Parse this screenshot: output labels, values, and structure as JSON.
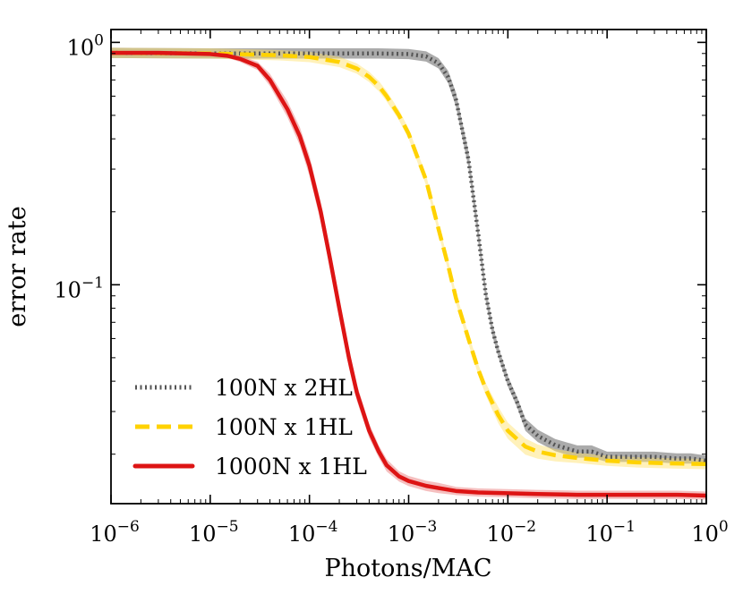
{
  "chart_data": {
    "type": "line",
    "xscale": "log",
    "yscale": "log",
    "xlabel": "Photons/MAC",
    "ylabel": "error rate",
    "xlim": [
      1e-06,
      1
    ],
    "ylim": [
      0.0125,
      1.13
    ],
    "x_ticks": [
      {
        "base": "10",
        "exp": "−6",
        "value": 1e-06
      },
      {
        "base": "10",
        "exp": "−5",
        "value": 1e-05
      },
      {
        "base": "10",
        "exp": "−4",
        "value": 0.0001
      },
      {
        "base": "10",
        "exp": "−3",
        "value": 0.001
      },
      {
        "base": "10",
        "exp": "−2",
        "value": 0.01
      },
      {
        "base": "10",
        "exp": "−1",
        "value": 0.1
      },
      {
        "base": "10",
        "exp": "0",
        "value": 1
      }
    ],
    "y_ticks": [
      {
        "base": "10",
        "exp": "0",
        "value": 1
      },
      {
        "base": "10",
        "exp": "−1",
        "value": 0.1
      }
    ],
    "legend_position": "lower-left",
    "series": [
      {
        "name": "100N x 2HL",
        "color": "#555555",
        "band_color": "#444444",
        "style": "dotted",
        "x": [
          1e-06,
          1e-05,
          0.0001,
          0.0005,
          0.001,
          0.0015,
          0.002,
          0.0025,
          0.003,
          0.004,
          0.005,
          0.006,
          0.007,
          0.008,
          0.01,
          0.0125,
          0.015,
          0.02,
          0.03,
          0.05,
          0.07,
          0.1,
          0.15,
          0.2,
          0.3,
          0.5,
          0.7,
          1
        ],
        "y": [
          0.905,
          0.9,
          0.9,
          0.9,
          0.895,
          0.875,
          0.82,
          0.72,
          0.58,
          0.33,
          0.165,
          0.091,
          0.065,
          0.053,
          0.04,
          0.0325,
          0.0265,
          0.0238,
          0.0218,
          0.0205,
          0.0205,
          0.0195,
          0.0195,
          0.0195,
          0.0195,
          0.0192,
          0.0192,
          0.0188
        ],
        "band": [
          0.05,
          0.05,
          0.05,
          0.05,
          0.05,
          0.05,
          0.05,
          0.06,
          0.07,
          0.08,
          0.08,
          0.07,
          0.06,
          0.05,
          0.05,
          0.05,
          0.06,
          0.06,
          0.06,
          0.06,
          0.06,
          0.05,
          0.05,
          0.05,
          0.05,
          0.05,
          0.05,
          0.05
        ]
      },
      {
        "name": "100N x 1HL",
        "color": "#FFD200",
        "band_color": "#FFE066",
        "style": "dashed",
        "x": [
          1e-06,
          1e-05,
          5e-05,
          0.0001,
          0.0002,
          0.0003,
          0.0004,
          0.0005,
          0.0006,
          0.0008,
          0.001,
          0.0015,
          0.002,
          0.0025,
          0.003,
          0.004,
          0.005,
          0.006,
          0.008,
          0.01,
          0.015,
          0.02,
          0.03,
          0.05,
          0.1,
          0.2,
          0.5,
          1
        ],
        "y": [
          0.905,
          0.9,
          0.885,
          0.87,
          0.83,
          0.78,
          0.72,
          0.66,
          0.6,
          0.5,
          0.42,
          0.27,
          0.17,
          0.12,
          0.088,
          0.06,
          0.045,
          0.037,
          0.029,
          0.025,
          0.0215,
          0.0205,
          0.0198,
          0.0193,
          0.0188,
          0.0185,
          0.0183,
          0.0182
        ],
        "band": [
          0.05,
          0.05,
          0.05,
          0.05,
          0.05,
          0.05,
          0.05,
          0.05,
          0.05,
          0.05,
          0.05,
          0.05,
          0.05,
          0.05,
          0.05,
          0.05,
          0.05,
          0.06,
          0.08,
          0.08,
          0.08,
          0.07,
          0.06,
          0.05,
          0.05,
          0.05,
          0.05,
          0.05
        ]
      },
      {
        "name": "1000N x 1HL",
        "color": "#DD1414",
        "band_color": "#E87070",
        "style": "solid",
        "x": [
          1e-06,
          3e-06,
          1e-05,
          1.5e-05,
          2e-05,
          3e-05,
          4e-05,
          6e-05,
          8e-05,
          0.0001,
          0.00013,
          0.00016,
          0.0002,
          0.00025,
          0.0003,
          0.0004,
          0.0005,
          0.0006,
          0.0008,
          0.001,
          0.0015,
          0.002,
          0.003,
          0.005,
          0.01,
          0.02,
          0.05,
          0.1,
          0.2,
          0.5,
          1
        ],
        "y": [
          0.905,
          0.905,
          0.895,
          0.88,
          0.855,
          0.8,
          0.7,
          0.53,
          0.41,
          0.31,
          0.2,
          0.13,
          0.08,
          0.05,
          0.036,
          0.025,
          0.0205,
          0.018,
          0.0162,
          0.0155,
          0.0148,
          0.0145,
          0.0141,
          0.0139,
          0.0138,
          0.0137,
          0.0136,
          0.0136,
          0.0136,
          0.0136,
          0.0135
        ],
        "band": [
          0.02,
          0.02,
          0.02,
          0.02,
          0.03,
          0.04,
          0.06,
          0.08,
          0.09,
          0.1,
          0.1,
          0.1,
          0.1,
          0.1,
          0.08,
          0.07,
          0.06,
          0.06,
          0.05,
          0.05,
          0.05,
          0.05,
          0.04,
          0.04,
          0.04,
          0.04,
          0.04,
          0.04,
          0.04,
          0.04,
          0.04
        ]
      }
    ]
  }
}
